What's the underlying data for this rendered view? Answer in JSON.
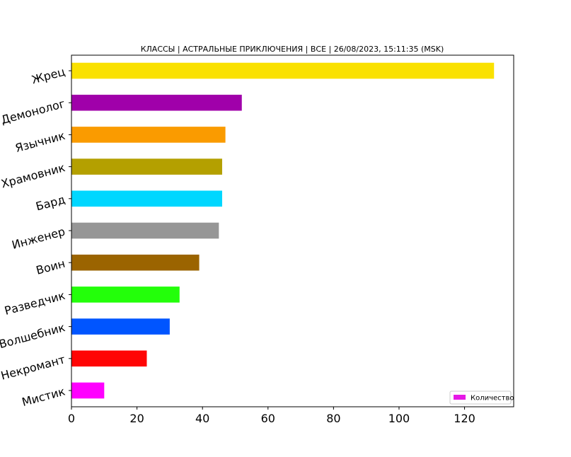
{
  "chart_data": {
    "type": "bar",
    "orientation": "horizontal",
    "title": "КЛАССЫ | АСТРАЛЬНЫЕ ПРИКЛЮЧЕНИЯ | ВСЕ | 26/08/2023, 15:11:35 (MSK)",
    "xlabel": "",
    "ylabel": "",
    "xlim": [
      0,
      135
    ],
    "xticks": [
      0,
      20,
      40,
      60,
      80,
      100,
      120
    ],
    "grid": false,
    "legend": {
      "placement": "bottom-right",
      "entries": [
        "Количество"
      ],
      "color": "#e619e6"
    },
    "categories": [
      "Жрец",
      "Демонолог",
      "Язычник",
      "Храмовник",
      "Бард",
      "Инженер",
      "Воин",
      "Разведчик",
      "Волшебник",
      "Некромант",
      "Мистик"
    ],
    "values": [
      129,
      52,
      47,
      46,
      46,
      45,
      39,
      33,
      30,
      23,
      10
    ],
    "colors": [
      "#fae100",
      "#a000aa",
      "#fa9b00",
      "#b4a000",
      "#00d7ff",
      "#969696",
      "#9b6400",
      "#23ff0a",
      "#0055ff",
      "#ff0505",
      "#ff00ff"
    ],
    "series": [
      {
        "name": "Количество"
      }
    ]
  }
}
